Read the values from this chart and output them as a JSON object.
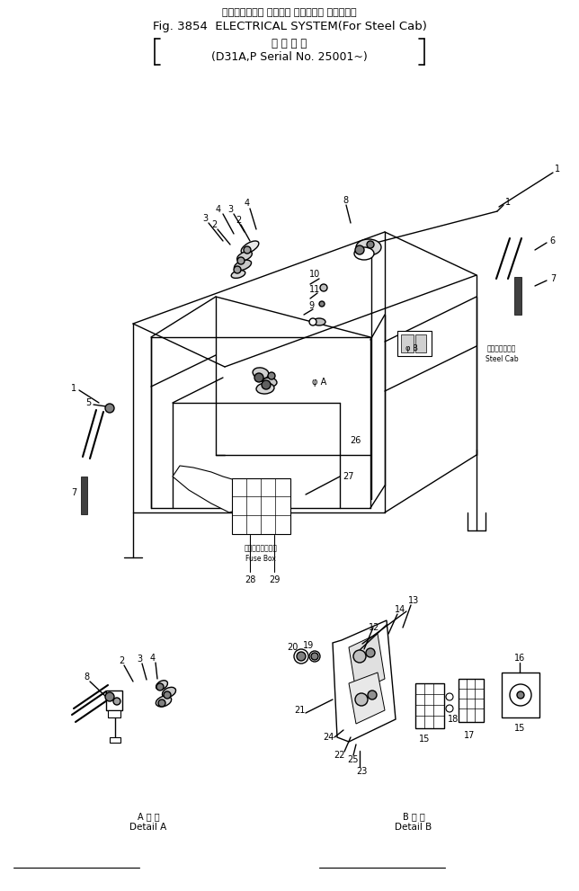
{
  "title_line1": "エレクトリカル システム （スチール キャブ用）",
  "title_line2": "Fig. 3854  ELECTRICAL SYSTEM(For Steel Cab)",
  "title_line3": "適 用 号 機",
  "title_line4": "(D31A,P Serial No. 25001~)",
  "bg_color": "#ffffff",
  "fig_width": 6.44,
  "fig_height": 9.91,
  "dpi": 100,
  "detail_a_jp": "A 詳 細",
  "detail_a_en": "Detail A",
  "detail_b_jp": "B 詳 細",
  "detail_b_en": "Detail B",
  "fuse_box_jp": "ヒューズボックス",
  "fuse_box_en": "Fuse Box",
  "steel_cab_jp": "スチールキャブ",
  "steel_cab_en": "Steel Cab",
  "phi_a": "φ A",
  "phi_b": "φ B"
}
